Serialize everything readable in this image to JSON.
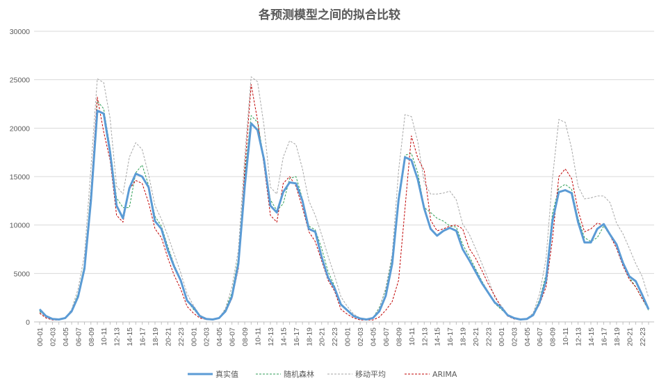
{
  "chart_data": {
    "type": "line",
    "title": "各预测模型之间的拟合比较",
    "xlabel": "",
    "ylabel": "",
    "ylim": [
      0,
      30000
    ],
    "yticks": [
      0,
      5000,
      10000,
      15000,
      20000,
      25000,
      30000
    ],
    "grid": true,
    "legend_position": "bottom",
    "categories": [
      "00-01",
      "01-02",
      "02-03",
      "03-04",
      "04-05",
      "05-06",
      "06-07",
      "07-08",
      "08-09",
      "09-10",
      "10-11",
      "11-12",
      "12-13",
      "13-14",
      "14-15",
      "15-16",
      "16-17",
      "17-18",
      "18-19",
      "19-20",
      "20-21",
      "21-22",
      "22-23",
      "23-24",
      "00-01",
      "01-02",
      "02-03",
      "03-04",
      "04-05",
      "05-06",
      "06-07",
      "07-08",
      "08-09",
      "09-10",
      "10-11",
      "11-12",
      "12-13",
      "13-14",
      "14-15",
      "15-16",
      "16-17",
      "17-18",
      "18-19",
      "19-20",
      "20-21",
      "21-22",
      "22-23",
      "23-24",
      "00-01",
      "01-02",
      "02-03",
      "03-04",
      "04-05",
      "05-06",
      "06-07",
      "07-08",
      "08-09",
      "09-10",
      "10-11",
      "11-12",
      "12-13",
      "13-14",
      "14-15",
      "15-16",
      "16-17",
      "17-18",
      "18-19",
      "19-20",
      "20-21",
      "21-22",
      "22-23",
      "23-24",
      "00-01",
      "01-02",
      "02-03",
      "03-04",
      "04-05",
      "05-06",
      "06-07",
      "07-08",
      "08-09",
      "09-10",
      "10-11",
      "11-12",
      "12-13",
      "13-14",
      "14-15",
      "15-16",
      "16-17",
      "17-18",
      "18-19",
      "19-20",
      "20-21",
      "21-22",
      "22-23",
      "23-24"
    ],
    "series": [
      {
        "name": "真实值",
        "color": "#5B9BD5",
        "style": "solid",
        "values": [
          1300,
          600,
          300,
          250,
          400,
          1100,
          2600,
          5500,
          12500,
          21800,
          21500,
          17500,
          12000,
          10700,
          13800,
          15300,
          15000,
          13900,
          10400,
          9600,
          7400,
          5700,
          4300,
          2200,
          1500,
          600,
          300,
          250,
          400,
          1100,
          2600,
          6000,
          14000,
          20500,
          19800,
          16800,
          12000,
          11300,
          13400,
          14400,
          14300,
          12500,
          9600,
          9300,
          6700,
          4600,
          3500,
          1800,
          1200,
          600,
          350,
          250,
          400,
          1100,
          2700,
          6000,
          12600,
          17000,
          16700,
          14700,
          11700,
          9600,
          8900,
          9400,
          9700,
          9400,
          7500,
          6400,
          5200,
          4000,
          3000,
          2000,
          1500,
          700,
          400,
          250,
          300,
          700,
          2000,
          4300,
          10400,
          13400,
          13600,
          13300,
          10300,
          8200,
          8200,
          9600,
          10100,
          9000,
          8000,
          6100,
          4700,
          4200,
          2800,
          1300
        ]
      },
      {
        "name": "随机森林",
        "color": "#2E9E55",
        "style": "dashed",
        "values": [
          1100,
          600,
          300,
          250,
          400,
          1200,
          2900,
          5900,
          13600,
          22800,
          22000,
          18000,
          12800,
          11800,
          11800,
          15400,
          16200,
          14100,
          10900,
          9900,
          7800,
          5900,
          4400,
          2200,
          1300,
          600,
          300,
          250,
          400,
          1300,
          3000,
          6600,
          15300,
          21300,
          20600,
          16900,
          12600,
          11500,
          12200,
          14800,
          15000,
          12700,
          9900,
          9500,
          7600,
          5200,
          3700,
          1700,
          1200,
          600,
          300,
          250,
          400,
          1500,
          3300,
          6800,
          13100,
          17200,
          17400,
          15400,
          11800,
          11300,
          10700,
          10400,
          9900,
          9800,
          8000,
          6800,
          5500,
          4200,
          3100,
          1900,
          1300,
          700,
          400,
          250,
          300,
          800,
          2300,
          4900,
          11200,
          13800,
          14200,
          13700,
          10700,
          8700,
          8300,
          8700,
          9900,
          8900,
          7900,
          6300,
          4600,
          3600,
          2400,
          1200
        ]
      },
      {
        "name": "移动平均",
        "color": "#A6A6A6",
        "style": "dashed",
        "values": [
          1000,
          500,
          300,
          250,
          400,
          1300,
          3400,
          6900,
          15900,
          25100,
          24700,
          21000,
          14000,
          13200,
          17000,
          18500,
          17800,
          15200,
          12000,
          10600,
          8900,
          7000,
          5100,
          2900,
          1700,
          700,
          350,
          250,
          400,
          1400,
          3600,
          7400,
          17100,
          25300,
          24800,
          20300,
          13900,
          13200,
          17000,
          18700,
          18300,
          15800,
          12500,
          11000,
          9000,
          6800,
          4800,
          2600,
          1600,
          800,
          400,
          250,
          400,
          1400,
          3500,
          7000,
          15600,
          21400,
          21200,
          18600,
          14400,
          13200,
          13200,
          13300,
          13500,
          12600,
          10100,
          9100,
          7600,
          6000,
          4400,
          2500,
          1700,
          800,
          400,
          250,
          350,
          900,
          2900,
          6500,
          14800,
          20900,
          20600,
          17900,
          14000,
          12700,
          12800,
          13000,
          13000,
          12300,
          10200,
          9100,
          7600,
          6000,
          4700,
          2500
        ]
      },
      {
        "name": "ARIMA",
        "color": "#C00000",
        "style": "dashed",
        "values": [
          900,
          400,
          200,
          200,
          400,
          1000,
          2500,
          5300,
          13500,
          23200,
          19600,
          16700,
          11000,
          10300,
          13700,
          14600,
          14300,
          12300,
          9600,
          8700,
          6600,
          4800,
          3400,
          1600,
          900,
          400,
          250,
          200,
          350,
          1000,
          2400,
          5500,
          15800,
          24500,
          20800,
          16200,
          11000,
          10300,
          14300,
          15000,
          14000,
          11800,
          9300,
          8300,
          6300,
          4300,
          3200,
          1300,
          800,
          400,
          200,
          200,
          200,
          500,
          1200,
          2100,
          4300,
          11700,
          19200,
          16900,
          15600,
          10500,
          9400,
          9600,
          9900,
          10000,
          9600,
          7600,
          6600,
          5300,
          3900,
          2700,
          1500,
          600,
          300,
          200,
          250,
          700,
          1800,
          3600,
          8500,
          15000,
          15800,
          14800,
          11500,
          9300,
          9600,
          10200,
          10000,
          8900,
          7600,
          5800,
          4400,
          3600,
          2400,
          1300
        ]
      }
    ]
  }
}
